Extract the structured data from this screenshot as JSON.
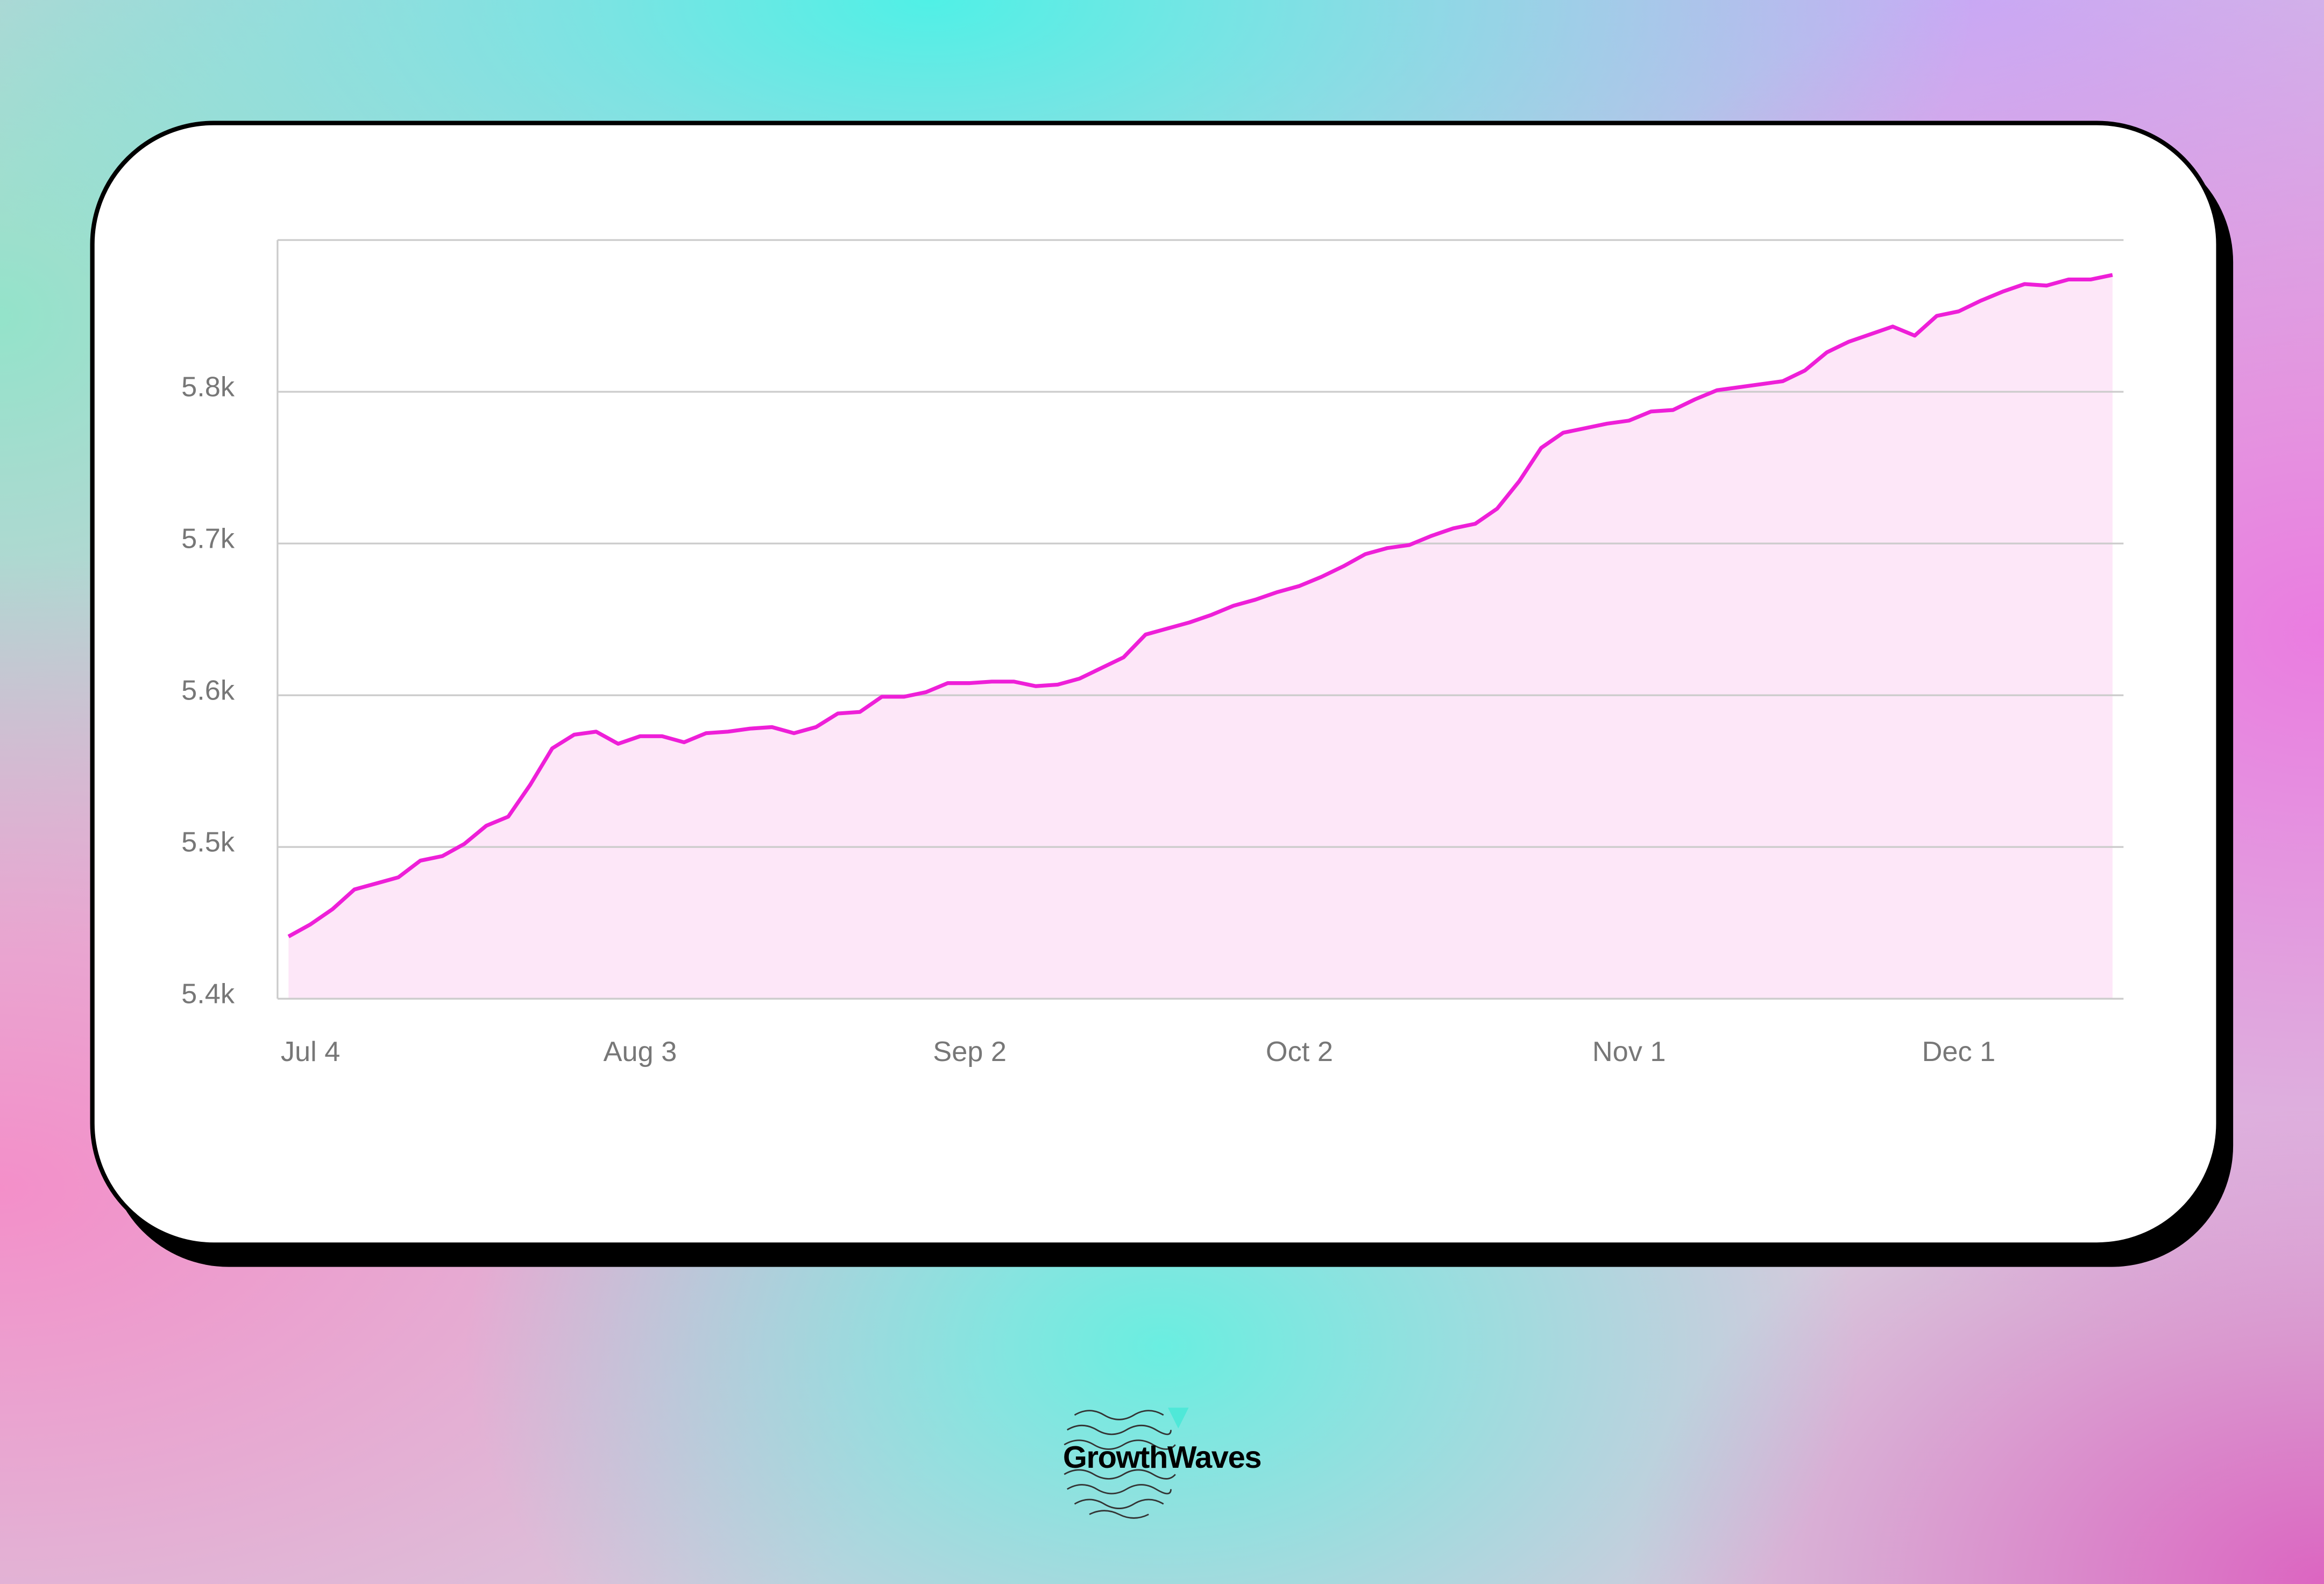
{
  "chart_data": {
    "type": "area",
    "categories": [
      null,
      "Jul 4",
      null,
      null,
      null,
      null,
      null,
      null,
      null,
      null,
      null,
      null,
      null,
      null,
      null,
      null,
      "Aug 3",
      null,
      null,
      null,
      null,
      null,
      null,
      null,
      null,
      null,
      null,
      null,
      null,
      null,
      null,
      "Sep 2",
      null,
      null,
      null,
      null,
      null,
      null,
      null,
      null,
      null,
      null,
      null,
      null,
      null,
      null,
      "Oct 2",
      null,
      null,
      null,
      null,
      null,
      null,
      null,
      null,
      null,
      null,
      null,
      null,
      null,
      null,
      "Nov 1",
      null,
      null,
      null,
      null,
      null,
      null,
      null,
      null,
      null,
      null,
      null,
      null,
      null,
      null,
      "Dec 1",
      null,
      null,
      null,
      null,
      null,
      null,
      null
    ],
    "values": [
      5441,
      5449,
      5459,
      5472,
      5476,
      5480,
      5491,
      5494,
      5502,
      5514,
      5520,
      5541,
      5565,
      5574,
      5576,
      5568,
      5573,
      5573,
      5569,
      5575,
      5576,
      5578,
      5579,
      5575,
      5579,
      5588,
      5589,
      5599,
      5599,
      5602,
      5608,
      5608,
      5609,
      5609,
      5606,
      5607,
      5611,
      5618,
      5625,
      5640,
      5644,
      5648,
      5653,
      5659,
      5663,
      5668,
      5672,
      5678,
      5685,
      5693,
      5697,
      5699,
      5705,
      5710,
      5713,
      5723,
      5741,
      5763,
      5773,
      5776,
      5779,
      5781,
      5787,
      5788,
      5795,
      5801,
      5803,
      5805,
      5807,
      5814,
      5826,
      5833,
      5838,
      5843,
      5837,
      5850,
      5853,
      5860,
      5866,
      5871,
      5870,
      5874,
      5874,
      5877
    ],
    "color": "#ee1fd8",
    "fill_color": "#fde7f8",
    "ylim": [
      5400,
      5900
    ],
    "yticks": [
      {
        "value": 5400,
        "label": "5.4k"
      },
      {
        "value": 5500,
        "label": "5.5k"
      },
      {
        "value": 5600,
        "label": "5.6k"
      },
      {
        "value": 5700,
        "label": "5.7k"
      },
      {
        "value": 5800,
        "label": "5.8k"
      }
    ],
    "grid": true
  },
  "logo": "GrowthWaves"
}
